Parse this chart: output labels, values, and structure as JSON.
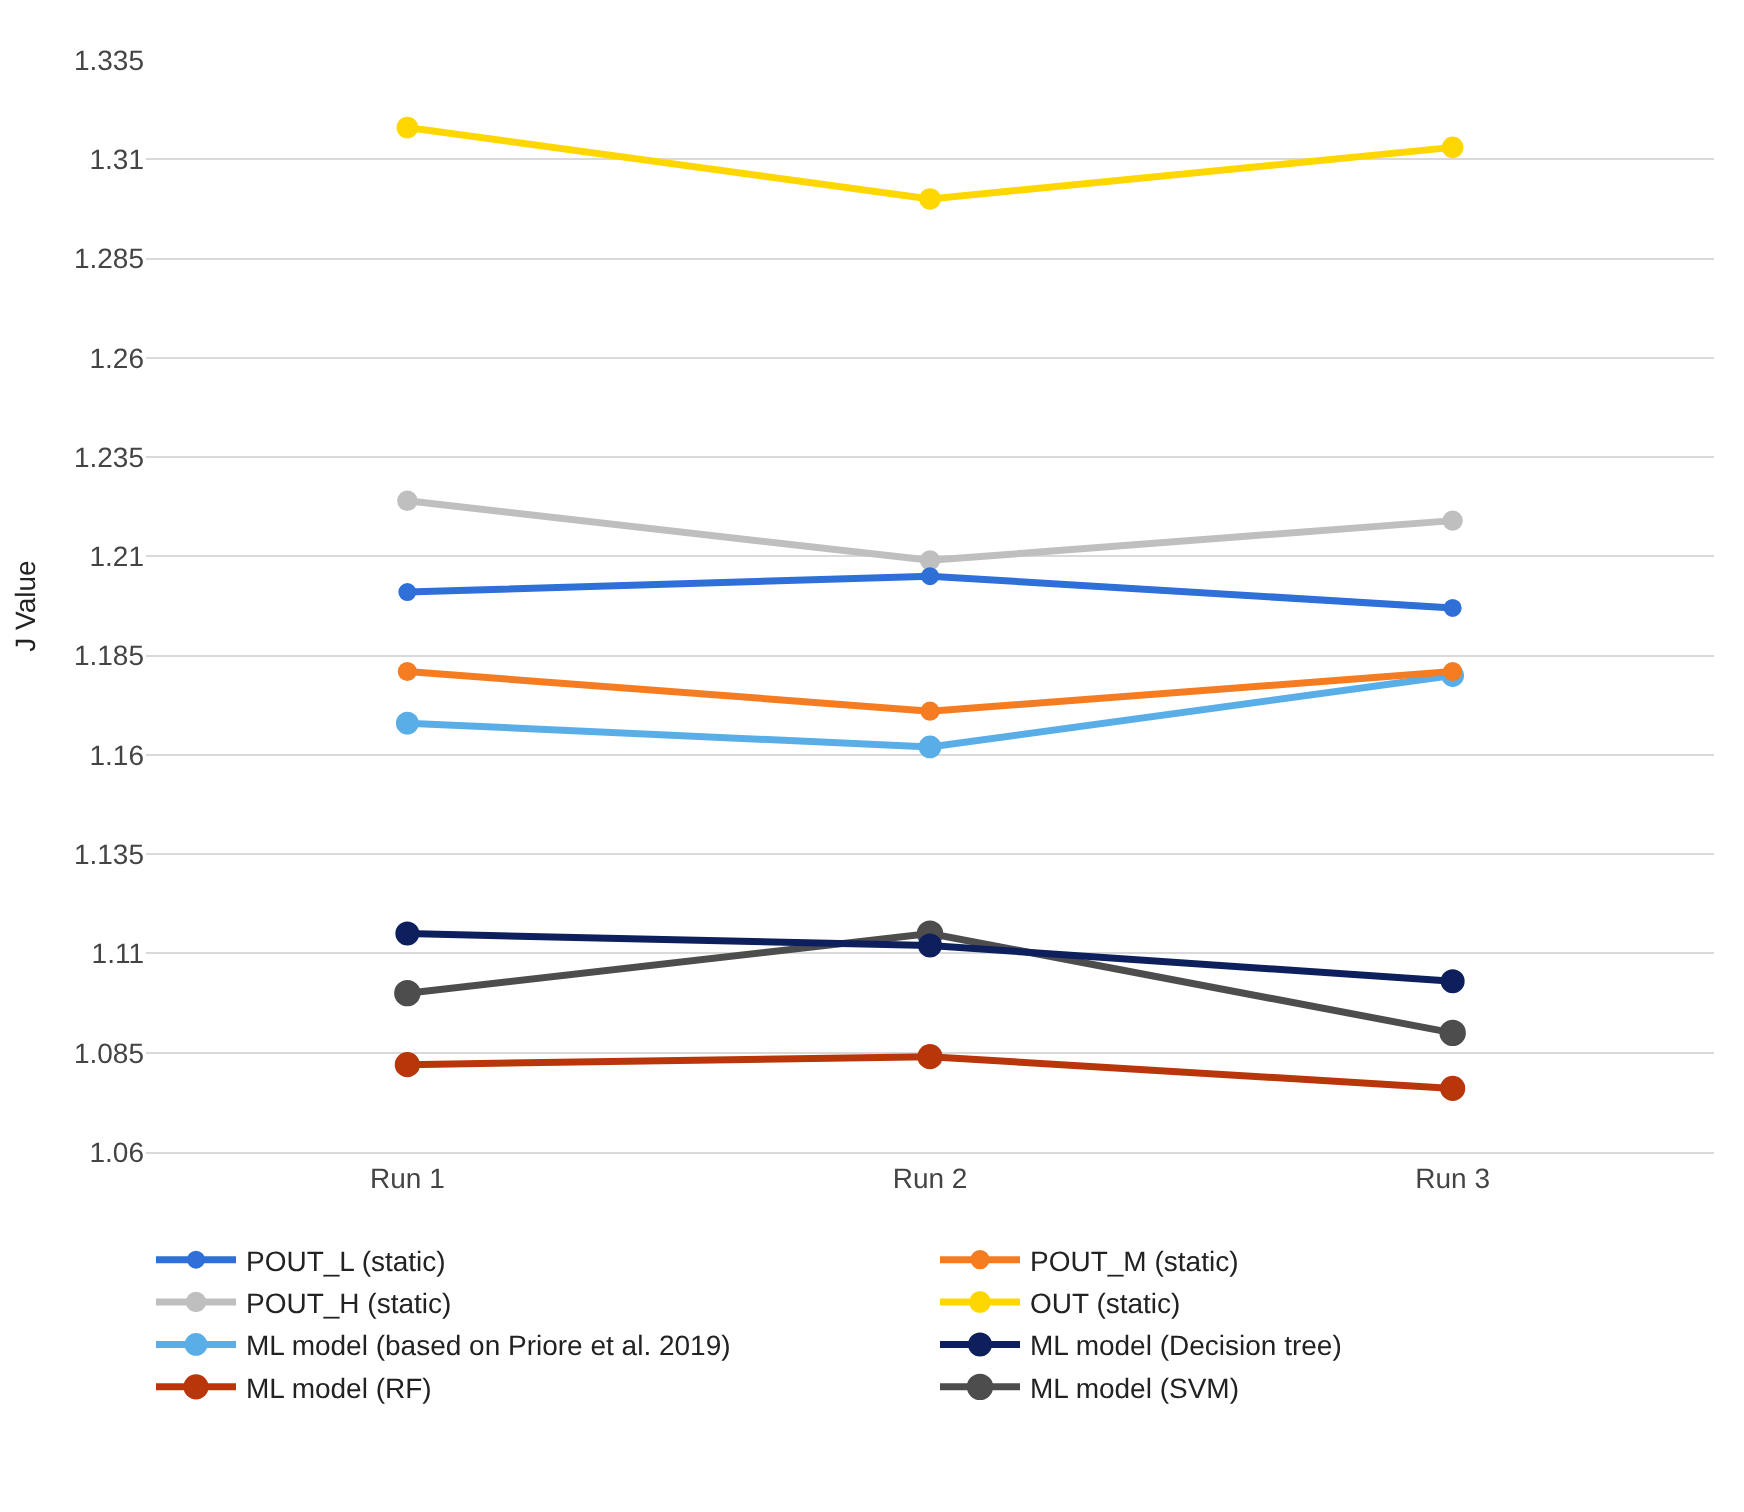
{
  "chart_data": {
    "type": "line",
    "ylabel": "J Value",
    "categories": [
      "Run 1",
      "Run 2",
      "Run 3"
    ],
    "ylim": [
      1.06,
      1.335
    ],
    "yticks": [
      1.06,
      1.085,
      1.11,
      1.135,
      1.16,
      1.185,
      1.21,
      1.235,
      1.26,
      1.285,
      1.31,
      1.335
    ],
    "grid": "y",
    "legend": "bottom",
    "marker": "circle",
    "line_style": "solid",
    "series": [
      {
        "name": "POUT_L (static)",
        "color": "#2e6fd8",
        "values": [
          1.201,
          1.205,
          1.197
        ]
      },
      {
        "name": "POUT_M (static)",
        "color": "#f57c20",
        "values": [
          1.181,
          1.171,
          1.181
        ]
      },
      {
        "name": "POUT_H (static)",
        "color": "#bfbfbf",
        "values": [
          1.224,
          1.209,
          1.219
        ]
      },
      {
        "name": "OUT (static)",
        "color": "#ffd700",
        "values": [
          1.318,
          1.3,
          1.313
        ]
      },
      {
        "name": "ML model (based on Priore et al. 2019)",
        "color": "#5aaee8",
        "values": [
          1.168,
          1.162,
          1.18
        ]
      },
      {
        "name": "ML model (Decision tree)",
        "color": "#0d1f5c",
        "values": [
          1.115,
          1.112,
          1.103
        ]
      },
      {
        "name": "ML model (RF)",
        "color": "#b8360a",
        "values": [
          1.082,
          1.084,
          1.076
        ]
      },
      {
        "name": "ML model (SVM)",
        "color": "#4d4d4d",
        "values": [
          1.1,
          1.115,
          1.09
        ]
      }
    ]
  }
}
